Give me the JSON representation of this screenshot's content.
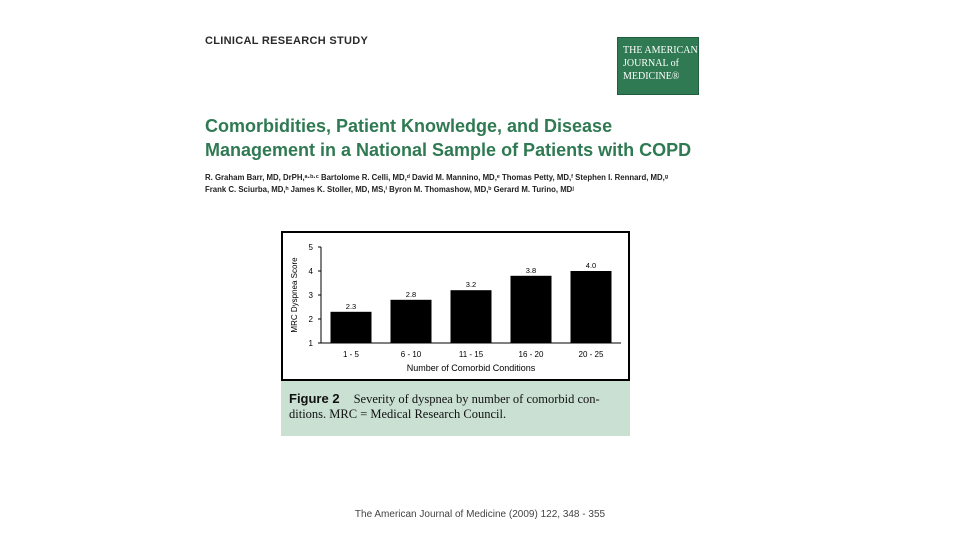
{
  "header": {
    "section": "CLINICAL RESEARCH STUDY"
  },
  "journal_logo": {
    "lines": [
      "THE AMERICAN",
      "JOURNAL of",
      "MEDICINE®"
    ]
  },
  "article": {
    "title_lines": [
      "Comorbidities, Patient Knowledge, and Disease",
      "Management in a National Sample of Patients with COPD"
    ],
    "author_lines": [
      "R. Graham Barr, MD, DrPH,ᵃ·ᵇ·ᶜ Bartolome R. Celli, MD,ᵈ David M. Mannino, MD,ᵉ Thomas Petty, MD,ᶠ Stephen I. Rennard, MD,ᵍ",
      "Frank C. Sciurba, MD,ʰ James K. Stoller, MD, MS,ⁱ Byron M. Thomashow, MD,ᵇ Gerard M. Turino, MDʲ"
    ]
  },
  "figure": {
    "label": "Figure 2",
    "caption_lines": [
      "Severity of dyspnea by number of comorbid con-",
      "ditions. MRC = Medical Research Council."
    ]
  },
  "chart_data": {
    "type": "bar",
    "categories": [
      "1 - 5",
      "6 - 10",
      "11 - 15",
      "16 - 20",
      "20 - 25"
    ],
    "values": [
      2.3,
      2.8,
      3.2,
      3.8,
      4.0
    ],
    "data_labels": [
      "2.3",
      "2.8",
      "3.2",
      "3.8",
      "4.0"
    ],
    "xlabel": "Number of Comorbid Conditions",
    "ylabel": "MRC Dyspnea Score",
    "ylim": [
      1,
      5
    ],
    "yticks": [
      "1",
      "2",
      "3",
      "4",
      "5"
    ],
    "bar_color": "#000000",
    "grid": false
  },
  "footer": {
    "citation": "The American Journal of Medicine (2009) 122, 348 - 355"
  }
}
